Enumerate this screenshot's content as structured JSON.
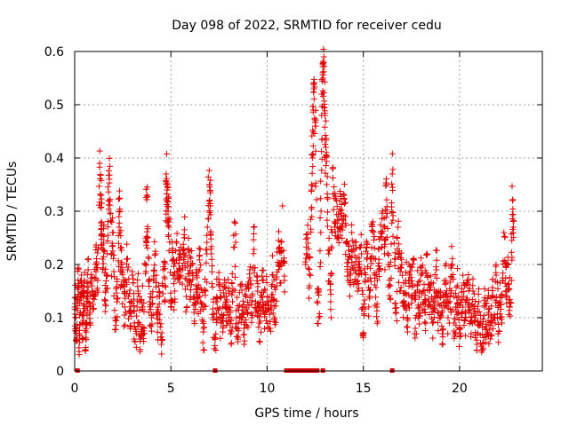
{
  "chart_data": {
    "type": "scatter",
    "title": "Day 098 of 2022, SRMTID for receiver cedu",
    "xlabel": "GPS time / hours",
    "ylabel": "SRMTID / TECUs",
    "xlim": [
      0,
      24.3
    ],
    "ylim": [
      0,
      0.6
    ],
    "xticks": [
      0,
      5,
      10,
      15,
      20
    ],
    "yticks": [
      0,
      0.1,
      0.2,
      0.3,
      0.4,
      0.5,
      0.6
    ],
    "xtick_labels": [
      "0",
      "5",
      "10",
      "15",
      "20"
    ],
    "ytick_labels": [
      "0",
      "0.1",
      "0.2",
      "0.3",
      "0.4",
      "0.5",
      "0.6"
    ],
    "grid": true,
    "marker": "plus",
    "color": "#e00000",
    "series": [
      {
        "name": "SRMTID",
        "points": [
          [
            0.0,
            0.12
          ],
          [
            0.05,
            0.1
          ],
          [
            0.1,
            0.08
          ],
          [
            0.15,
            0.13
          ],
          [
            0.2,
            0.16
          ],
          [
            0.25,
            0.07
          ],
          [
            0.3,
            0.11
          ],
          [
            0.35,
            0.18
          ],
          [
            0.4,
            0.06
          ],
          [
            0.45,
            0.14
          ],
          [
            0.5,
            0.17
          ],
          [
            0.55,
            0.04
          ],
          [
            0.6,
            0.09
          ],
          [
            0.65,
            0.15
          ],
          [
            0.7,
            0.19
          ],
          [
            0.8,
            0.12
          ],
          [
            0.9,
            0.16
          ],
          [
            1.0,
            0.14
          ],
          [
            1.1,
            0.2
          ],
          [
            1.2,
            0.17
          ],
          [
            1.3,
            0.39
          ],
          [
            1.35,
            0.33
          ],
          [
            1.4,
            0.28
          ],
          [
            1.45,
            0.21
          ],
          [
            1.5,
            0.24
          ],
          [
            1.6,
            0.15
          ],
          [
            1.7,
            0.18
          ],
          [
            1.75,
            0.32
          ],
          [
            1.8,
            0.36
          ],
          [
            1.9,
            0.22
          ],
          [
            2.0,
            0.26
          ],
          [
            2.1,
            0.1
          ],
          [
            2.2,
            0.13
          ],
          [
            2.3,
            0.29
          ],
          [
            2.35,
            0.3
          ],
          [
            2.4,
            0.19
          ],
          [
            2.5,
            0.16
          ],
          [
            2.6,
            0.12
          ],
          [
            2.7,
            0.21
          ],
          [
            2.8,
            0.14
          ],
          [
            2.9,
            0.11
          ],
          [
            3.0,
            0.18
          ],
          [
            3.1,
            0.09
          ],
          [
            3.2,
            0.07
          ],
          [
            3.3,
            0.15
          ],
          [
            3.4,
            0.06
          ],
          [
            3.5,
            0.12
          ],
          [
            3.6,
            0.08
          ],
          [
            3.7,
            0.2
          ],
          [
            3.75,
            0.33
          ],
          [
            3.8,
            0.25
          ],
          [
            3.9,
            0.13
          ],
          [
            4.0,
            0.1
          ],
          [
            4.1,
            0.17
          ],
          [
            4.2,
            0.22
          ],
          [
            4.3,
            0.09
          ],
          [
            4.4,
            0.14
          ],
          [
            4.5,
            0.05
          ],
          [
            4.6,
            0.19
          ],
          [
            4.7,
            0.16
          ],
          [
            4.75,
            0.37
          ],
          [
            4.8,
            0.34
          ],
          [
            4.85,
            0.3
          ],
          [
            4.9,
            0.27
          ],
          [
            5.0,
            0.12
          ],
          [
            5.1,
            0.21
          ],
          [
            5.2,
            0.15
          ],
          [
            5.3,
            0.24
          ],
          [
            5.4,
            0.18
          ],
          [
            5.5,
            0.22
          ],
          [
            5.6,
            0.19
          ],
          [
            5.7,
            0.25
          ],
          [
            5.8,
            0.14
          ],
          [
            5.9,
            0.23
          ],
          [
            6.0,
            0.17
          ],
          [
            6.1,
            0.2
          ],
          [
            6.2,
            0.11
          ],
          [
            6.3,
            0.16
          ],
          [
            6.4,
            0.13
          ],
          [
            6.5,
            0.19
          ],
          [
            6.6,
            0.12
          ],
          [
            6.7,
            0.08
          ],
          [
            6.8,
            0.15
          ],
          [
            6.9,
            0.27
          ],
          [
            7.0,
            0.35
          ],
          [
            7.05,
            0.31
          ],
          [
            7.1,
            0.22
          ],
          [
            7.2,
            0.1
          ],
          [
            7.3,
            0.06
          ],
          [
            7.4,
            0.13
          ],
          [
            7.5,
            0.16
          ],
          [
            7.6,
            0.09
          ],
          [
            7.7,
            0.12
          ],
          [
            7.8,
            0.14
          ],
          [
            7.9,
            0.11
          ],
          [
            8.0,
            0.15
          ],
          [
            8.1,
            0.07
          ],
          [
            8.2,
            0.13
          ],
          [
            8.3,
            0.28
          ],
          [
            8.4,
            0.1
          ],
          [
            8.5,
            0.09
          ],
          [
            8.6,
            0.16
          ],
          [
            8.7,
            0.12
          ],
          [
            8.8,
            0.08
          ],
          [
            8.9,
            0.14
          ],
          [
            9.0,
            0.11
          ],
          [
            9.1,
            0.19
          ],
          [
            9.2,
            0.1
          ],
          [
            9.3,
            0.27
          ],
          [
            9.4,
            0.13
          ],
          [
            9.5,
            0.15
          ],
          [
            9.6,
            0.09
          ],
          [
            9.7,
            0.12
          ],
          [
            9.8,
            0.17
          ],
          [
            9.9,
            0.11
          ],
          [
            10.0,
            0.14
          ],
          [
            10.1,
            0.08
          ],
          [
            10.2,
            0.13
          ],
          [
            10.3,
            0.18
          ],
          [
            10.4,
            0.1
          ],
          [
            10.5,
            0.16
          ],
          [
            10.6,
            0.23
          ],
          [
            10.7,
            0.2
          ],
          [
            10.8,
            0.31
          ],
          [
            10.9,
            0.17
          ],
          [
            12.0,
            0.2
          ],
          [
            12.1,
            0.25
          ],
          [
            12.2,
            0.16
          ],
          [
            12.3,
            0.34
          ],
          [
            12.35,
            0.4
          ],
          [
            12.4,
            0.49
          ],
          [
            12.45,
            0.53
          ],
          [
            12.5,
            0.46
          ],
          [
            12.6,
            0.13
          ],
          [
            12.7,
            0.1
          ],
          [
            12.8,
            0.3
          ],
          [
            12.85,
            0.52
          ],
          [
            12.9,
            0.55
          ],
          [
            12.95,
            0.59
          ],
          [
            13.0,
            0.48
          ],
          [
            13.05,
            0.42
          ],
          [
            13.1,
            0.35
          ],
          [
            13.2,
            0.22
          ],
          [
            13.3,
            0.13
          ],
          [
            13.4,
            0.38
          ],
          [
            13.5,
            0.28
          ],
          [
            13.6,
            0.32
          ],
          [
            13.7,
            0.25
          ],
          [
            13.8,
            0.3
          ],
          [
            13.9,
            0.27
          ],
          [
            14.0,
            0.33
          ],
          [
            14.1,
            0.24
          ],
          [
            14.2,
            0.21
          ],
          [
            14.3,
            0.18
          ],
          [
            14.4,
            0.26
          ],
          [
            14.5,
            0.19
          ],
          [
            14.6,
            0.23
          ],
          [
            14.7,
            0.15
          ],
          [
            14.8,
            0.2
          ],
          [
            14.9,
            0.22
          ],
          [
            15.0,
            0.07
          ],
          [
            15.1,
            0.17
          ],
          [
            15.2,
            0.24
          ],
          [
            15.3,
            0.14
          ],
          [
            15.4,
            0.21
          ],
          [
            15.5,
            0.28
          ],
          [
            15.6,
            0.18
          ],
          [
            15.7,
            0.12
          ],
          [
            15.8,
            0.19
          ],
          [
            15.9,
            0.25
          ],
          [
            16.0,
            0.3
          ],
          [
            16.1,
            0.22
          ],
          [
            16.2,
            0.35
          ],
          [
            16.3,
            0.2
          ],
          [
            16.4,
            0.16
          ],
          [
            16.5,
            0.37
          ],
          [
            16.6,
            0.24
          ],
          [
            16.7,
            0.11
          ],
          [
            16.8,
            0.27
          ],
          [
            16.9,
            0.15
          ],
          [
            17.0,
            0.2
          ],
          [
            17.1,
            0.13
          ],
          [
            17.2,
            0.17
          ],
          [
            17.3,
            0.1
          ],
          [
            17.4,
            0.18
          ],
          [
            17.5,
            0.14
          ],
          [
            17.6,
            0.21
          ],
          [
            17.7,
            0.08
          ],
          [
            17.8,
            0.16
          ],
          [
            17.9,
            0.12
          ],
          [
            18.0,
            0.18
          ],
          [
            18.1,
            0.15
          ],
          [
            18.2,
            0.11
          ],
          [
            18.3,
            0.22
          ],
          [
            18.4,
            0.13
          ],
          [
            18.5,
            0.16
          ],
          [
            18.6,
            0.09
          ],
          [
            18.7,
            0.14
          ],
          [
            18.8,
            0.19
          ],
          [
            18.9,
            0.11
          ],
          [
            19.0,
            0.15
          ],
          [
            19.1,
            0.07
          ],
          [
            19.2,
            0.12
          ],
          [
            19.3,
            0.17
          ],
          [
            19.4,
            0.1
          ],
          [
            19.5,
            0.13
          ],
          [
            19.6,
            0.2
          ],
          [
            19.7,
            0.09
          ],
          [
            19.8,
            0.12
          ],
          [
            19.9,
            0.16
          ],
          [
            20.0,
            0.08
          ],
          [
            20.1,
            0.11
          ],
          [
            20.2,
            0.14
          ],
          [
            20.3,
            0.1
          ],
          [
            20.4,
            0.17
          ],
          [
            20.5,
            0.12
          ],
          [
            20.6,
            0.07
          ],
          [
            20.7,
            0.15
          ],
          [
            20.8,
            0.1
          ],
          [
            20.9,
            0.05
          ],
          [
            21.0,
            0.13
          ],
          [
            21.1,
            0.09
          ],
          [
            21.2,
            0.04
          ],
          [
            21.3,
            0.12
          ],
          [
            21.4,
            0.08
          ],
          [
            21.5,
            0.11
          ],
          [
            21.6,
            0.06
          ],
          [
            21.7,
            0.14
          ],
          [
            21.8,
            0.1
          ],
          [
            21.9,
            0.18
          ],
          [
            22.0,
            0.07
          ],
          [
            22.1,
            0.13
          ],
          [
            22.2,
            0.09
          ],
          [
            22.3,
            0.26
          ],
          [
            22.4,
            0.15
          ],
          [
            22.5,
            0.2
          ],
          [
            22.6,
            0.12
          ],
          [
            22.7,
            0.17
          ],
          [
            22.75,
            0.32
          ],
          [
            22.8,
            0.27
          ]
        ]
      }
    ],
    "zero_marks_x": [
      0.15,
      7.3,
      11.0,
      11.2,
      11.4,
      11.6,
      11.8,
      12.0,
      12.2,
      12.4,
      12.6,
      12.9,
      16.5
    ]
  }
}
